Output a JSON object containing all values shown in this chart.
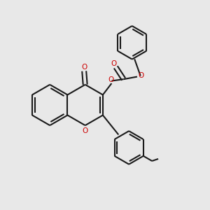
{
  "bg_color": "#e8e8e8",
  "bond_color": "#1a1a1a",
  "oxygen_color": "#cc0000",
  "line_width": 1.5,
  "figsize": [
    3.0,
    3.0
  ],
  "dpi": 100,
  "xlim": [
    0.0,
    1.0
  ],
  "ylim": [
    0.0,
    1.0
  ]
}
